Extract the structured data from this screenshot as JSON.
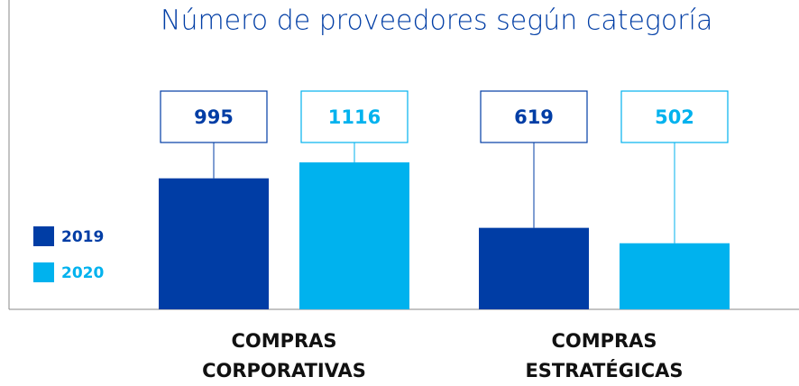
{
  "chart_data": {
    "type": "bar",
    "title": "Número de proveedores según categoría",
    "categories": [
      "COMPRAS CORPORATIVAS",
      "COMPRAS ESTRATÉGICAS"
    ],
    "series": [
      {
        "name": "2019",
        "color": "#003da5",
        "values": [
          995,
          619
        ]
      },
      {
        "name": "2020",
        "color": "#00b2ee",
        "values": [
          1116,
          502
        ]
      }
    ]
  }
}
